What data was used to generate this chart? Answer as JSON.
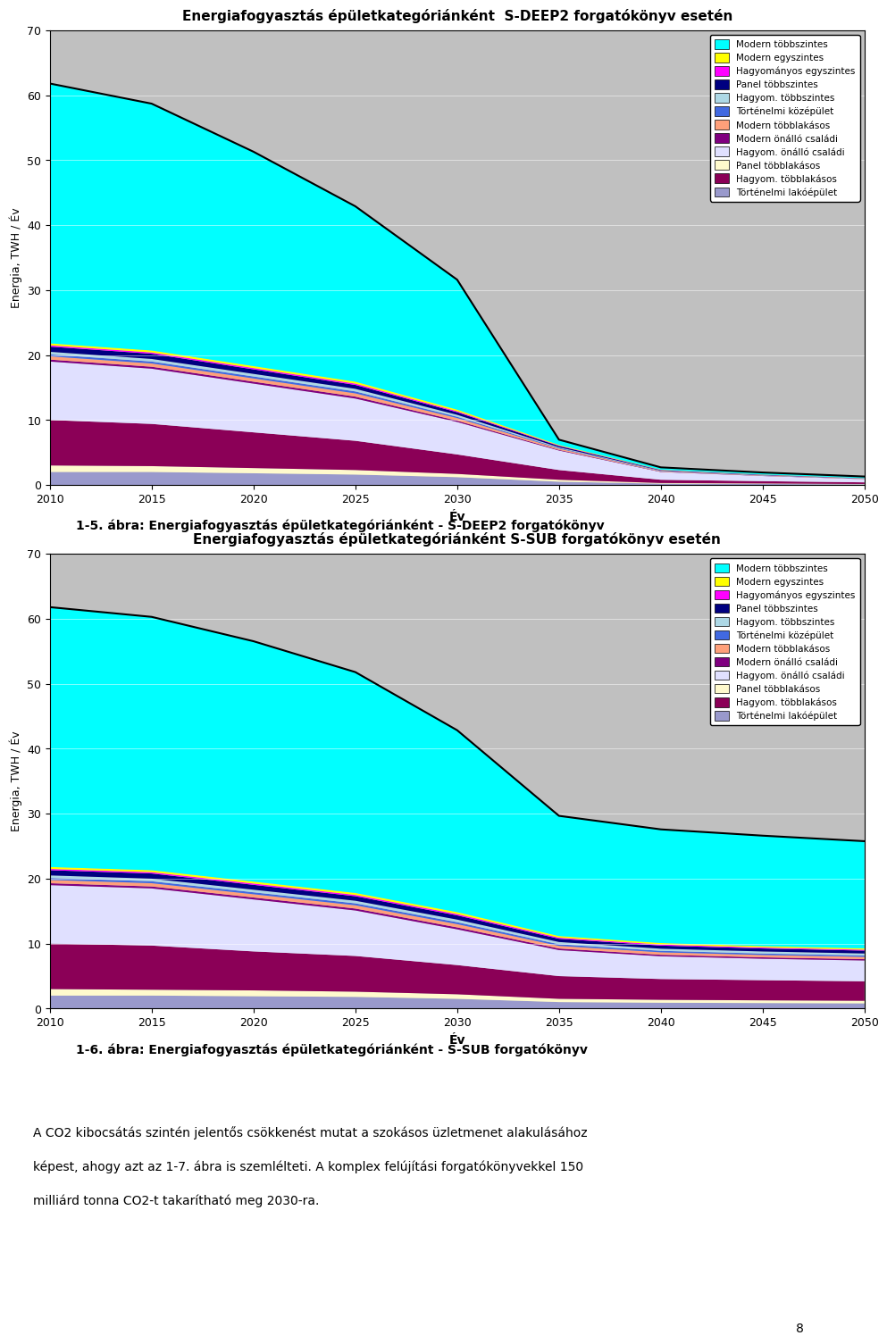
{
  "years": [
    2010,
    2015,
    2020,
    2025,
    2030,
    2035,
    2040,
    2045,
    2050
  ],
  "title1": "Energiafogyasztás épületkategóriánként  S-DEEP2 forgatókönyv esetén",
  "title2": "Energiafogyasztás épületkategóriánként S-SUB forgatókönyv esetén",
  "caption1": "1-5. ábra: Energiafogyasztás épületkategóriánként - S-DEEP2 forgatókönyv",
  "caption2": "1-6. ábra: Energiafogyasztás épületkategóriánként - S-SUB forgatókönyv",
  "body_text": "A CO2 kibocsátás szintén jelentős csökkenést mutat a szokásos üzletmenet alakulásához\nképest, ahogy azt az 1-7. ábra is szemlélteti. A komplex felújítási forgatókönyvekkel 150\nmilliárd tonna CO2-t takarítható meg 2030-ra.",
  "xlabel": "Év",
  "ylabel": "Energia, TWH / Év",
  "ylim": [
    0,
    70
  ],
  "yticks": [
    0,
    10,
    20,
    30,
    40,
    50,
    60,
    70
  ],
  "legend_labels": [
    "Modern többszintes",
    "Modern egyszintes",
    "Hagyományos egyszintes",
    "Panel többszintes",
    "Hagyom. többszintes",
    "Történelmi középület",
    "Modern többlakásos",
    "Modern önálló családi",
    "Hagyom. önálló családi",
    "Panel többlakásos",
    "Hagyom. többlakásos",
    "Történelmi lakóépület"
  ],
  "colors": [
    "#00FFFF",
    "#FFFF00",
    "#FF00FF",
    "#000080",
    "#ADD8E6",
    "#4169E1",
    "#FFA07A",
    "#800080",
    "#E0E0FF",
    "#FFFACD",
    "#8B0057",
    "#9999CC"
  ],
  "chart1_data": {
    "Történelmi lakóépület": [
      2.0,
      2.0,
      1.8,
      1.6,
      1.2,
      0.5,
      0.2,
      0.15,
      0.1
    ],
    "Panel többlakásos": [
      1.0,
      0.9,
      0.8,
      0.7,
      0.5,
      0.3,
      0.1,
      0.08,
      0.05
    ],
    "Hagyom. többlakásos": [
      7.0,
      6.5,
      5.5,
      4.5,
      3.0,
      1.5,
      0.5,
      0.35,
      0.25
    ],
    "Hagyom. önálló családi": [
      9.0,
      8.5,
      7.5,
      6.5,
      5.0,
      3.0,
      1.2,
      0.8,
      0.5
    ],
    "Modern önálló családi": [
      0.3,
      0.3,
      0.3,
      0.3,
      0.2,
      0.1,
      0.05,
      0.03,
      0.02
    ],
    "Modern többlakásos": [
      0.5,
      0.5,
      0.5,
      0.5,
      0.4,
      0.2,
      0.08,
      0.05,
      0.03
    ],
    "Történelmi középület": [
      0.3,
      0.3,
      0.3,
      0.3,
      0.2,
      0.1,
      0.05,
      0.03,
      0.02
    ],
    "Hagyom. többszintes": [
      0.4,
      0.4,
      0.4,
      0.4,
      0.3,
      0.1,
      0.04,
      0.03,
      0.02
    ],
    "Panel többszintes": [
      0.8,
      0.8,
      0.7,
      0.6,
      0.4,
      0.2,
      0.07,
      0.05,
      0.03
    ],
    "Hagyományos egyszintes": [
      0.2,
      0.2,
      0.2,
      0.2,
      0.15,
      0.07,
      0.03,
      0.02,
      0.01
    ],
    "Modern egyszintes": [
      0.3,
      0.3,
      0.3,
      0.3,
      0.25,
      0.1,
      0.04,
      0.03,
      0.02
    ],
    "Modern többszintes": [
      40.0,
      38.0,
      33.0,
      27.0,
      20.0,
      0.8,
      0.35,
      0.3,
      0.25
    ]
  },
  "chart2_data": {
    "Történelmi lakóépület": [
      2.0,
      2.0,
      1.9,
      1.8,
      1.5,
      1.0,
      0.9,
      0.85,
      0.8
    ],
    "Panel többlakásos": [
      1.0,
      0.9,
      0.9,
      0.8,
      0.7,
      0.5,
      0.45,
      0.42,
      0.4
    ],
    "Hagyom. többlakásos": [
      7.0,
      6.8,
      6.0,
      5.5,
      4.5,
      3.5,
      3.2,
      3.1,
      3.0
    ],
    "Hagyom. önálló családi": [
      9.0,
      8.8,
      8.0,
      7.0,
      5.5,
      4.0,
      3.5,
      3.3,
      3.2
    ],
    "Modern önálló családi": [
      0.3,
      0.3,
      0.3,
      0.3,
      0.3,
      0.25,
      0.23,
      0.22,
      0.21
    ],
    "Modern többlakásos": [
      0.5,
      0.5,
      0.5,
      0.5,
      0.5,
      0.4,
      0.38,
      0.36,
      0.35
    ],
    "Történelmi középület": [
      0.3,
      0.3,
      0.3,
      0.3,
      0.3,
      0.25,
      0.23,
      0.22,
      0.21
    ],
    "Hagyom. többszintes": [
      0.4,
      0.4,
      0.4,
      0.4,
      0.4,
      0.35,
      0.33,
      0.32,
      0.31
    ],
    "Panel többszintes": [
      0.8,
      0.8,
      0.75,
      0.7,
      0.65,
      0.5,
      0.48,
      0.46,
      0.44
    ],
    "Hagyományos egyszintes": [
      0.2,
      0.2,
      0.2,
      0.2,
      0.2,
      0.17,
      0.16,
      0.15,
      0.14
    ],
    "Modern egyszintes": [
      0.3,
      0.3,
      0.3,
      0.3,
      0.3,
      0.25,
      0.23,
      0.22,
      0.21
    ],
    "Modern többszintes": [
      40.0,
      39.0,
      37.0,
      34.0,
      28.0,
      18.5,
      17.5,
      17.0,
      16.5
    ]
  },
  "background_color": "#C0C0C0",
  "plot_bg": "#C0C0C0"
}
